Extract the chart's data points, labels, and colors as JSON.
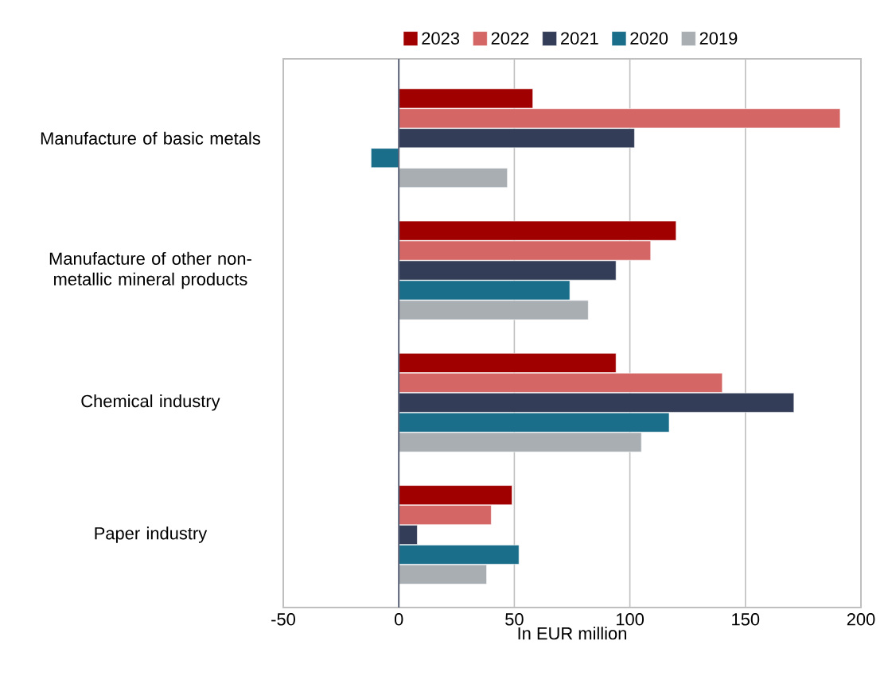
{
  "chart_data": {
    "type": "bar",
    "orientation": "horizontal",
    "xlabel": "In EUR million",
    "categories": [
      "Manufacture of basic metals",
      "Manufacture of other non-metallic mineral products",
      "Chemical industry",
      "Paper industry"
    ],
    "series": [
      {
        "name": "2023",
        "color": "#a00000",
        "values": [
          58,
          120,
          94,
          49
        ]
      },
      {
        "name": "2022",
        "color": "#d46666",
        "values": [
          191,
          109,
          140,
          40
        ]
      },
      {
        "name": "2021",
        "color": "#333d57",
        "values": [
          102,
          94,
          171,
          8
        ]
      },
      {
        "name": "2020",
        "color": "#1a6e8a",
        "values": [
          -12,
          74,
          117,
          52
        ]
      },
      {
        "name": "2019",
        "color": "#a9aeb3",
        "values": [
          47,
          82,
          105,
          38
        ]
      }
    ],
    "xlim": [
      -50,
      200
    ],
    "xticks": [
      -50,
      0,
      50,
      100,
      150,
      200
    ],
    "grid": "x",
    "legend": "top"
  }
}
